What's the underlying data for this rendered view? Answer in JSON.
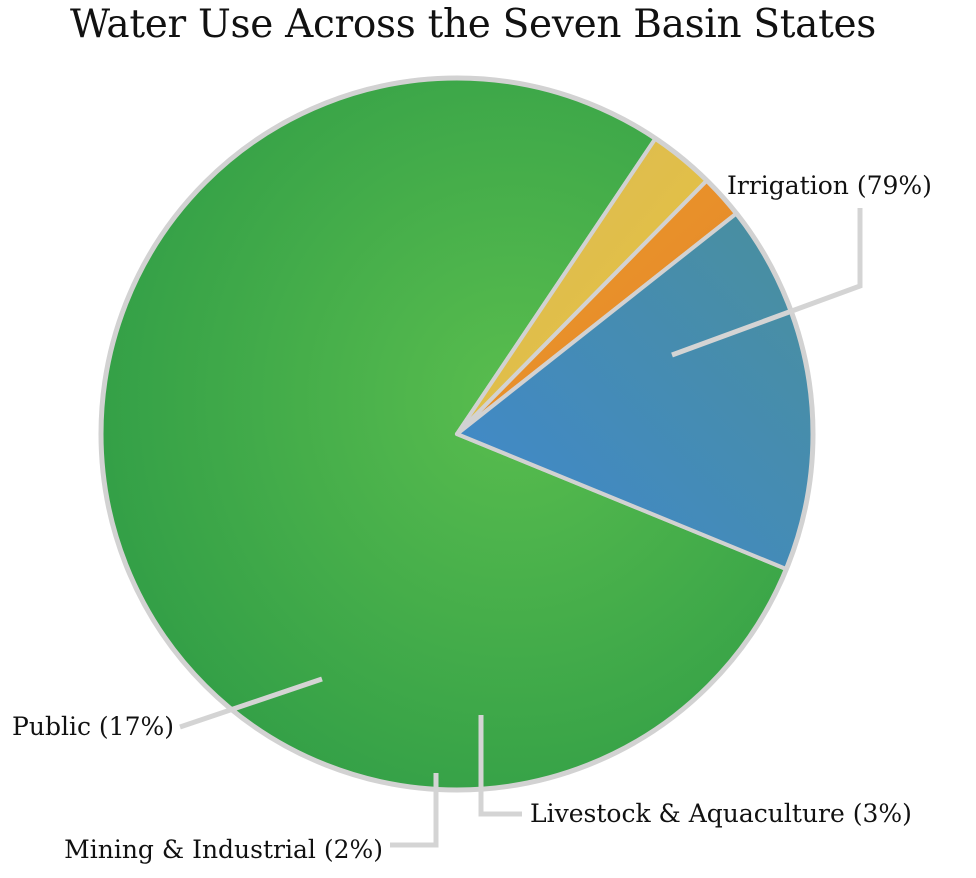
{
  "chart_data": {
    "type": "pie",
    "title": "Water Use Across the Seven Basin States",
    "slices": [
      {
        "label": "Irrigation (79%)",
        "name": "Irrigation",
        "value": 79,
        "color": "#3ea94b"
      },
      {
        "label": "Livestock & Aquaculture (3%)",
        "name": "Livestock & Aquaculture",
        "value": 3,
        "color": "#e3c24a"
      },
      {
        "label": "Mining & Industrial (2%)",
        "name": "Mining & Industrial",
        "value": 2,
        "color": "#e8922a"
      },
      {
        "label": "Public (17%)",
        "name": "Public",
        "value": 17,
        "color": "#3f86c6"
      }
    ],
    "legend": "none",
    "labels": "outside with leader lines"
  }
}
